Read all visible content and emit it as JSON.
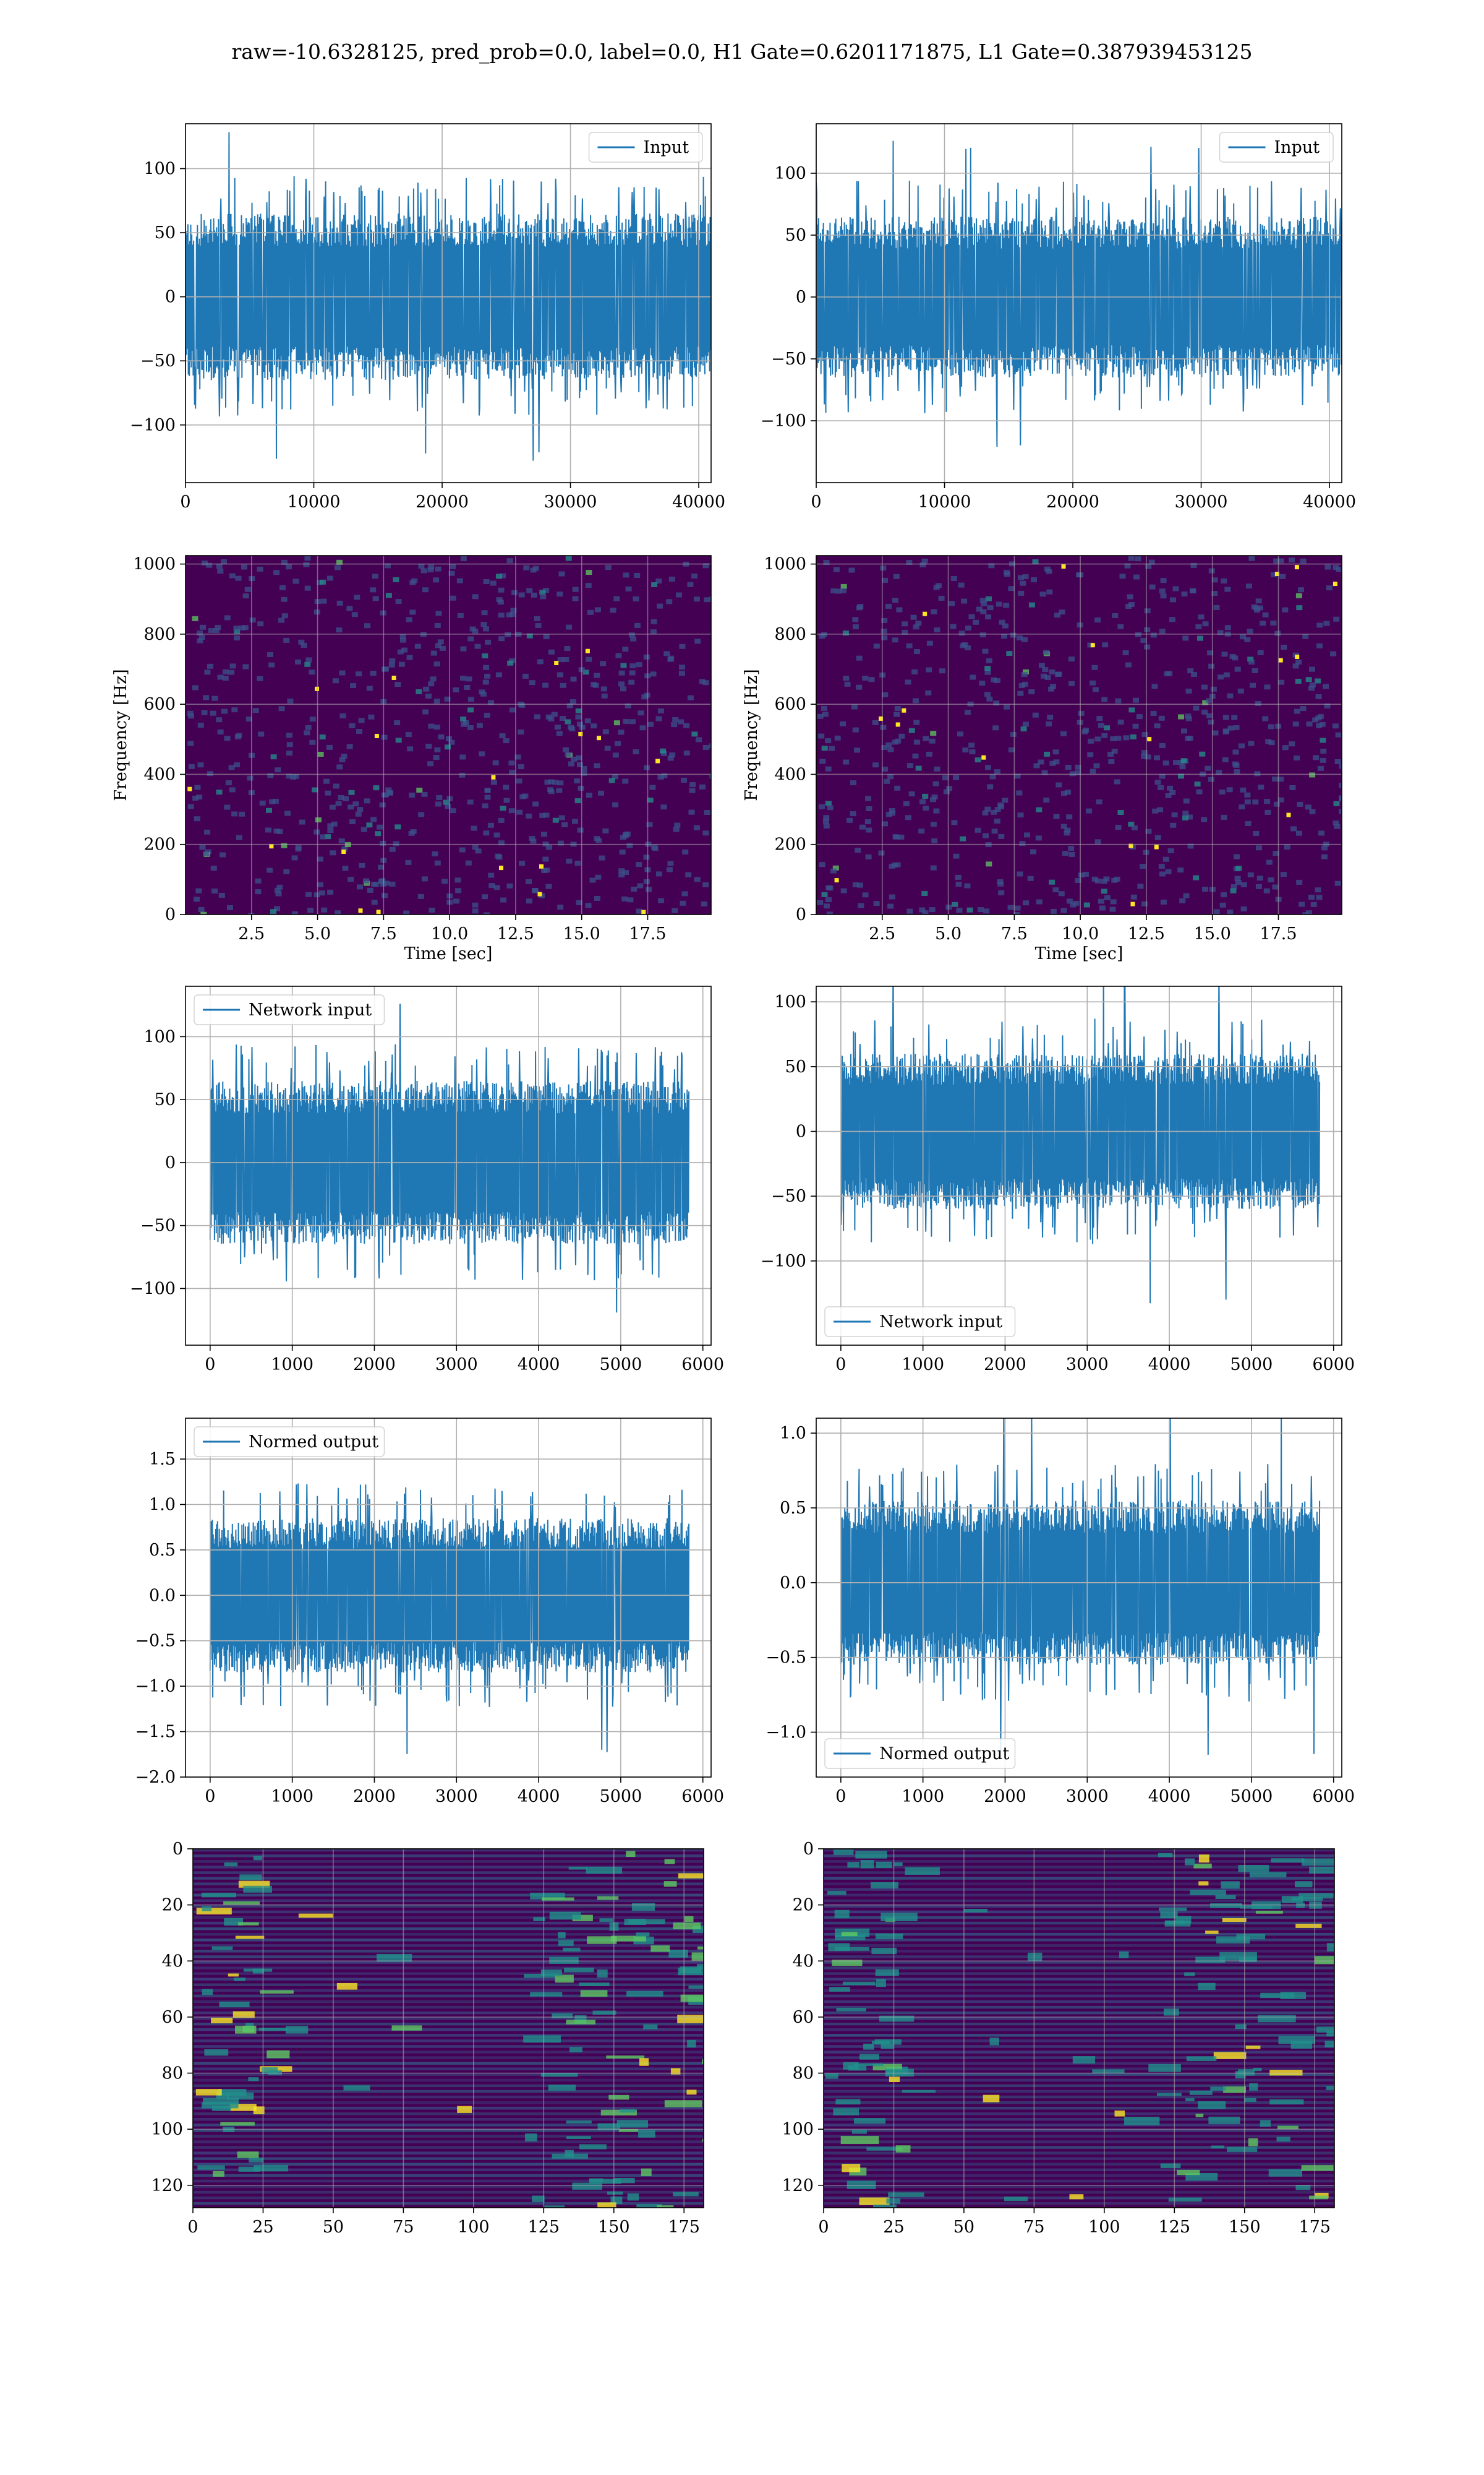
{
  "figure": {
    "suptitle": "raw=-10.6328125, pred_prob=0.0, label=0.0, H1 Gate=0.6201171875, L1 Gate=0.387939453125"
  },
  "colors": {
    "series": "#1f77b4",
    "grid": "#b0b0b0",
    "viridis_dark": "#440154",
    "viridis_mid": "#21918c",
    "viridis_bright": "#fde725"
  },
  "chart_data": [
    {
      "type": "line",
      "panel": "row1-left",
      "series": [
        {
          "name": "Input",
          "style": "noise",
          "approx_amplitude": 65,
          "approx_peak": 130
        }
      ],
      "xlim": [
        0,
        40960
      ],
      "ylim": [
        -145,
        135
      ],
      "xticks": [
        0,
        10000,
        20000,
        30000,
        40000
      ],
      "yticks": [
        -100,
        -50,
        0,
        50,
        100
      ],
      "grid": true,
      "legend_position": "upper right"
    },
    {
      "type": "line",
      "panel": "row1-right",
      "series": [
        {
          "name": "Input",
          "style": "noise",
          "approx_amplitude": 65,
          "approx_peak": 130
        }
      ],
      "xlim": [
        0,
        40960
      ],
      "ylim": [
        -150,
        140
      ],
      "xticks": [
        0,
        10000,
        20000,
        30000,
        40000
      ],
      "yticks": [
        -100,
        -50,
        0,
        50,
        100
      ],
      "grid": true,
      "legend_position": "upper right"
    },
    {
      "type": "heatmap",
      "panel": "row2-left",
      "style": "spectrogram",
      "xlabel": "Time [sec]",
      "ylabel": "Frequency [Hz]",
      "xlim": [
        0,
        19.9
      ],
      "ylim": [
        0,
        1024
      ],
      "xticks": [
        2.5,
        5.0,
        7.5,
        10.0,
        12.5,
        15.0,
        17.5
      ],
      "xtick_labels": [
        "2.5",
        "5.0",
        "7.5",
        "10.0",
        "12.5",
        "15.0",
        "17.5"
      ],
      "yticks": [
        0,
        200,
        400,
        600,
        800,
        1000
      ],
      "colormap": "viridis",
      "grid": true
    },
    {
      "type": "heatmap",
      "panel": "row2-right",
      "style": "spectrogram",
      "xlabel": "Time [sec]",
      "ylabel": "Frequency [Hz]",
      "xlim": [
        0,
        19.9
      ],
      "ylim": [
        0,
        1024
      ],
      "xticks": [
        2.5,
        5.0,
        7.5,
        10.0,
        12.5,
        15.0,
        17.5
      ],
      "xtick_labels": [
        "2.5",
        "5.0",
        "7.5",
        "10.0",
        "12.5",
        "15.0",
        "17.5"
      ],
      "yticks": [
        0,
        200,
        400,
        600,
        800,
        1000
      ],
      "colormap": "viridis",
      "grid": true
    },
    {
      "type": "line",
      "panel": "row3-left",
      "series": [
        {
          "name": "Network input",
          "style": "noise",
          "approx_amplitude": 65,
          "approx_peak": 128
        }
      ],
      "xlim": [
        -300,
        6100
      ],
      "ylim": [
        -145,
        140
      ],
      "xticks": [
        0,
        1000,
        2000,
        3000,
        4000,
        5000,
        6000
      ],
      "yticks": [
        -100,
        -50,
        0,
        50,
        100
      ],
      "grid": true,
      "legend_position": "upper left"
    },
    {
      "type": "line",
      "panel": "row3-right",
      "series": [
        {
          "name": "Network input",
          "style": "noise",
          "approx_amplitude": 60,
          "approx_peak": 140
        }
      ],
      "xlim": [
        -300,
        6100
      ],
      "ylim": [
        -165,
        112
      ],
      "xticks": [
        0,
        1000,
        2000,
        3000,
        4000,
        5000,
        6000
      ],
      "yticks": [
        -100,
        -50,
        0,
        50,
        100
      ],
      "grid": true,
      "legend_position": "lower left"
    },
    {
      "type": "line",
      "panel": "row4-left",
      "series": [
        {
          "name": "Normed output",
          "style": "noise",
          "approx_amplitude": 0.85,
          "approx_peak": 1.8
        }
      ],
      "xlim": [
        -300,
        6100
      ],
      "ylim": [
        -2.0,
        1.95
      ],
      "xticks": [
        0,
        1000,
        2000,
        3000,
        4000,
        5000,
        6000
      ],
      "yticks": [
        -2.0,
        -1.5,
        -1.0,
        -0.5,
        0.0,
        0.5,
        1.0,
        1.5
      ],
      "ytick_labels": [
        "−2.0",
        "−1.5",
        "−1.0",
        "−0.5",
        "0.0",
        "0.5",
        "1.0",
        "1.5"
      ],
      "grid": true,
      "legend_position": "upper left"
    },
    {
      "type": "line",
      "panel": "row4-right",
      "series": [
        {
          "name": "Normed output",
          "style": "noise",
          "approx_amplitude": 0.55,
          "approx_peak": 1.22
        }
      ],
      "xlim": [
        -300,
        6100
      ],
      "ylim": [
        -1.3,
        1.1
      ],
      "xticks": [
        0,
        1000,
        2000,
        3000,
        4000,
        5000,
        6000
      ],
      "yticks": [
        -1.0,
        -0.5,
        0.0,
        0.5,
        1.0
      ],
      "ytick_labels": [
        "−1.0",
        "−0.5",
        "0.0",
        "0.5",
        "1.0"
      ],
      "grid": true,
      "legend_position": "lower left"
    },
    {
      "type": "heatmap",
      "panel": "row5-left",
      "style": "feature-map",
      "xlim": [
        0,
        182
      ],
      "ylim": [
        128,
        0
      ],
      "xticks": [
        0,
        25,
        50,
        75,
        100,
        125,
        150,
        175
      ],
      "yticks": [
        0,
        20,
        40,
        60,
        80,
        100,
        120
      ],
      "colormap": "viridis",
      "grid": true
    },
    {
      "type": "heatmap",
      "panel": "row5-right",
      "style": "feature-map",
      "xlim": [
        0,
        182
      ],
      "ylim": [
        128,
        0
      ],
      "xticks": [
        0,
        25,
        50,
        75,
        100,
        125,
        150,
        175
      ],
      "yticks": [
        0,
        20,
        40,
        60,
        80,
        100,
        120
      ],
      "colormap": "viridis",
      "grid": true
    }
  ]
}
